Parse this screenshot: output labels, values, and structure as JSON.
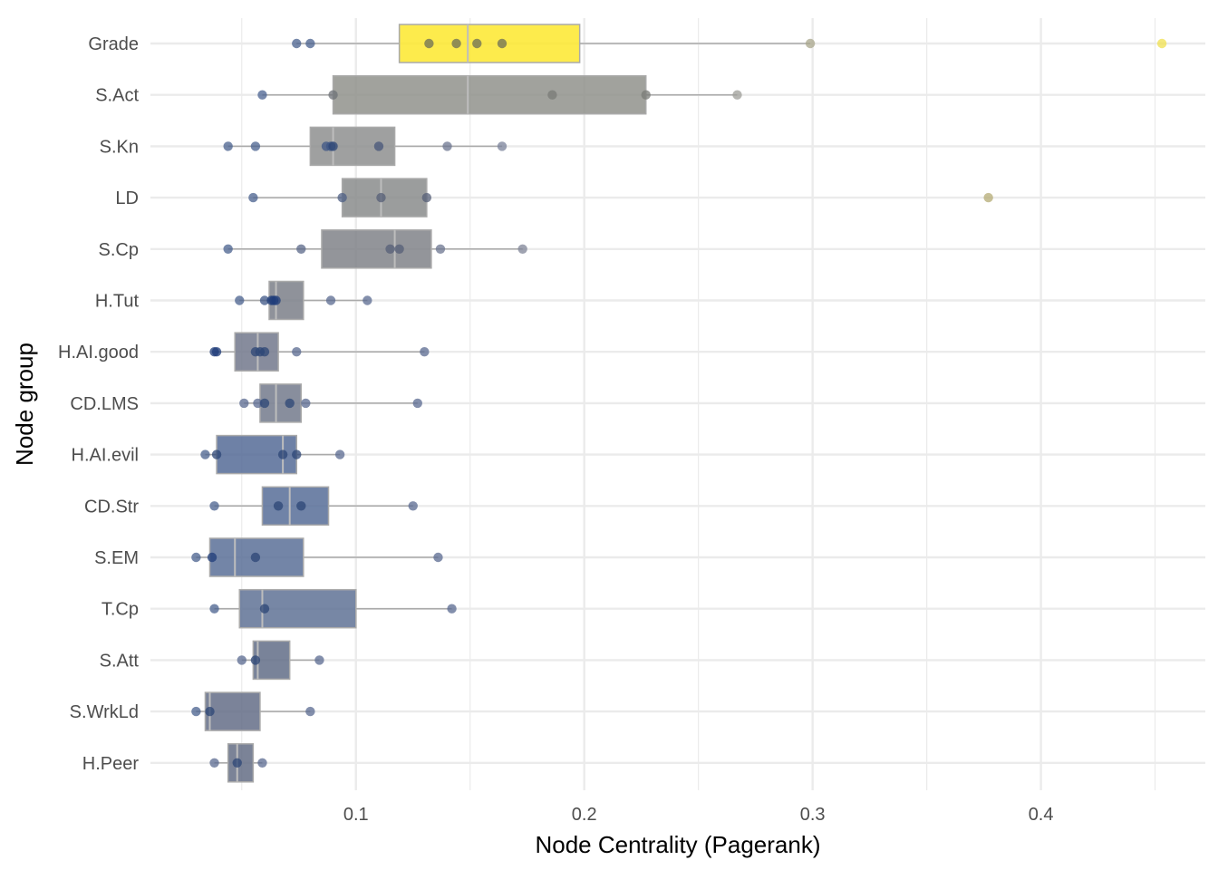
{
  "chart_data": {
    "type": "boxplot",
    "title": "",
    "xlabel": "Node Centrality (Pagerank)",
    "ylabel": "Node group",
    "xlim": [
      0.01,
      0.472
    ],
    "x_ticks": [
      0.1,
      0.2,
      0.3,
      0.4
    ],
    "x_tick_labels": [
      "0.1",
      "0.2",
      "0.3",
      "0.4"
    ],
    "x_minor_ticks": [
      0.05,
      0.15,
      0.25,
      0.35,
      0.45
    ],
    "grid": true,
    "legend": "none",
    "colors": {
      "grid": "#ebebeb",
      "whisker": "#aaaaaa",
      "box_border": "#aaaaaa",
      "median": "#bdbdbd"
    },
    "groups": [
      {
        "name": "Grade",
        "color": "#fde725",
        "q1": 0.119,
        "median": 0.149,
        "q3": 0.198,
        "whisker_low": 0.074,
        "whisker_high": 0.299,
        "points": [
          0.074,
          0.08,
          0.132,
          0.144,
          0.153,
          0.164,
          0.299,
          0.453
        ],
        "point_colors": [
          "#48608e",
          "#48608e",
          "#6b6d58",
          "#6b6d58",
          "#6b6d58",
          "#6b6d58",
          "#a8a58b",
          "#f0e04f"
        ]
      },
      {
        "name": "S.Act",
        "color": "#8c8e87",
        "q1": 0.09,
        "median": 0.149,
        "q3": 0.227,
        "whisker_low": 0.059,
        "whisker_high": 0.267,
        "points": [
          0.059,
          0.09,
          0.186,
          0.227,
          0.267
        ],
        "point_colors": [
          "#4a6290",
          "#6e7177",
          "#7a7b77",
          "#7a7b77",
          "#9d9e98"
        ]
      },
      {
        "name": "S.Kn",
        "color": "#8a8b8b",
        "q1": 0.08,
        "median": 0.09,
        "q3": 0.117,
        "whisker_low": 0.044,
        "whisker_high": 0.164,
        "points": [
          0.044,
          0.056,
          0.087,
          0.089,
          0.09,
          0.11,
          0.14,
          0.164
        ],
        "point_colors": [
          "#48608e",
          "#48608e",
          "#3d5585",
          "#3d5585",
          "#2c4576",
          "#475679",
          "#6c7690",
          "#7a8299"
        ]
      },
      {
        "name": "LD",
        "color": "#858788",
        "q1": 0.094,
        "median": 0.111,
        "q3": 0.131,
        "whisker_low": 0.055,
        "whisker_high": 0.131,
        "points": [
          0.055,
          0.094,
          0.111,
          0.131,
          0.377
        ],
        "point_colors": [
          "#48608e",
          "#4e5f84",
          "#565f77",
          "#565f77",
          "#b4ab74"
        ]
      },
      {
        "name": "S.Cp",
        "color": "#7b7e84",
        "q1": 0.085,
        "median": 0.117,
        "q3": 0.133,
        "whisker_low": 0.044,
        "whisker_high": 0.173,
        "points": [
          0.044,
          0.076,
          0.115,
          0.119,
          0.137,
          0.173
        ],
        "point_colors": [
          "#48608e",
          "#5a6788",
          "#565f77",
          "#565f77",
          "#6c7690",
          "#7f8497"
        ]
      },
      {
        "name": "H.Tut",
        "color": "#767a84",
        "q1": 0.062,
        "median": 0.065,
        "q3": 0.077,
        "whisker_low": 0.049,
        "whisker_high": 0.105,
        "points": [
          0.049,
          0.06,
          0.063,
          0.064,
          0.065,
          0.089,
          0.105
        ],
        "point_colors": [
          "#48608e",
          "#3d5585",
          "#1f3c7a",
          "#1f3c7a",
          "#1f3c7a",
          "#5a6a90",
          "#5a6a90"
        ]
      },
      {
        "name": "H.AI.good",
        "color": "#6c7388",
        "q1": 0.047,
        "median": 0.057,
        "q3": 0.066,
        "whisker_low": 0.038,
        "whisker_high": 0.13,
        "points": [
          0.038,
          0.039,
          0.056,
          0.058,
          0.06,
          0.074,
          0.13
        ],
        "point_colors": [
          "#1f3c7a",
          "#1f3c7a",
          "#2c4576",
          "#2c4576",
          "#2c4576",
          "#5a6a90",
          "#5a6a90"
        ]
      },
      {
        "name": "CD.LMS",
        "color": "#6e7588",
        "q1": 0.058,
        "median": 0.065,
        "q3": 0.076,
        "whisker_low": 0.051,
        "whisker_high": 0.127,
        "points": [
          0.051,
          0.057,
          0.06,
          0.071,
          0.078,
          0.127
        ],
        "point_colors": [
          "#5a6a90",
          "#5a6a90",
          "#2c4576",
          "#2c4576",
          "#5a6a90",
          "#5a6a90"
        ]
      },
      {
        "name": "H.AI.evil",
        "color": "#4e6592",
        "q1": 0.039,
        "median": 0.068,
        "q3": 0.074,
        "whisker_low": 0.034,
        "whisker_high": 0.093,
        "points": [
          0.034,
          0.039,
          0.068,
          0.074,
          0.093
        ],
        "point_colors": [
          "#48608e",
          "#2c4576",
          "#2c4576",
          "#2c4576",
          "#5a6a90"
        ]
      },
      {
        "name": "CD.Str",
        "color": "#506894",
        "q1": 0.059,
        "median": 0.071,
        "q3": 0.088,
        "whisker_low": 0.038,
        "whisker_high": 0.125,
        "points": [
          0.038,
          0.066,
          0.076,
          0.125
        ],
        "point_colors": [
          "#48608e",
          "#2c4576",
          "#2c4576",
          "#5a6a90"
        ]
      },
      {
        "name": "S.EM",
        "color": "#546a94",
        "q1": 0.036,
        "median": 0.047,
        "q3": 0.077,
        "whisker_low": 0.03,
        "whisker_high": 0.136,
        "points": [
          0.03,
          0.037,
          0.056,
          0.136
        ],
        "point_colors": [
          "#48608e",
          "#1f3c7a",
          "#2c4576",
          "#5a6a90"
        ]
      },
      {
        "name": "T.Cp",
        "color": "#596d91",
        "q1": 0.049,
        "median": 0.059,
        "q3": 0.1,
        "whisker_low": 0.038,
        "whisker_high": 0.142,
        "points": [
          0.038,
          0.06,
          0.142
        ],
        "point_colors": [
          "#48608e",
          "#2c4576",
          "#5a6a90"
        ]
      },
      {
        "name": "S.Att",
        "color": "#5c6882",
        "q1": 0.055,
        "median": 0.057,
        "q3": 0.071,
        "whisker_low": 0.05,
        "whisker_high": 0.084,
        "points": [
          0.05,
          0.056,
          0.084
        ],
        "point_colors": [
          "#5a6a90",
          "#2c4576",
          "#5a6a90"
        ]
      },
      {
        "name": "S.WrkLd",
        "color": "#5e6882",
        "q1": 0.034,
        "median": 0.036,
        "q3": 0.058,
        "whisker_low": 0.03,
        "whisker_high": 0.08,
        "points": [
          0.03,
          0.036,
          0.08
        ],
        "point_colors": [
          "#48608e",
          "#2c4576",
          "#5a6a90"
        ]
      },
      {
        "name": "H.Peer",
        "color": "#5e6880",
        "q1": 0.044,
        "median": 0.048,
        "q3": 0.055,
        "whisker_low": 0.038,
        "whisker_high": 0.059,
        "points": [
          0.038,
          0.048,
          0.059
        ],
        "point_colors": [
          "#5a6a90",
          "#2c4576",
          "#5a6a90"
        ]
      }
    ]
  }
}
